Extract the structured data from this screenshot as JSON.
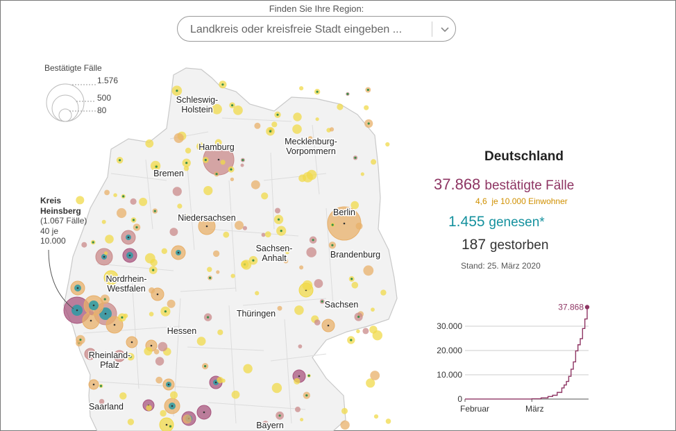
{
  "search": {
    "label": "Finden Sie Ihre Region:",
    "placeholder": "Landkreis oder kreisfreie Stadt eingeben ..."
  },
  "legend": {
    "title": "Bestätigte Fälle",
    "values": [
      "1.576",
      "500",
      "80"
    ]
  },
  "annotation": {
    "name_line1": "Kreis",
    "name_line2": "Heinsberg",
    "line3": "(1.067 Fälle)",
    "line4": "40 je",
    "line5": "10.000"
  },
  "map": {
    "states": [
      {
        "name": "Schleswig-",
        "name2": "Holstein"
      },
      {
        "name": "Hamburg"
      },
      {
        "name": "Mecklenburg-",
        "name2": "Vorpommern"
      },
      {
        "name": "Bremen"
      },
      {
        "name": "Berlin"
      },
      {
        "name": "Niedersachsen"
      },
      {
        "name": "Sachsen-",
        "name2": "Anhalt"
      },
      {
        "name": "Brandenburg"
      },
      {
        "name": "Nordrhein-",
        "name2": "Westfalen"
      },
      {
        "name": "Sachsen"
      },
      {
        "name": "Thüringen"
      },
      {
        "name": "Hessen"
      },
      {
        "name": "Rheinland-",
        "name2": "Pfalz"
      },
      {
        "name": "Saarland"
      },
      {
        "name": "Bayern"
      }
    ],
    "colors": {
      "low": "#f0d94a",
      "mid": "#e8b06a",
      "high": "#c98a8a",
      "veryhigh": "#a8557e",
      "recovered": "#2a9aa4"
    }
  },
  "summary": {
    "region": "Deutschland",
    "cases_value": "37.868",
    "cases_label": "bestätigte Fälle",
    "per_value": "4,6",
    "per_label": "je 10.000 Einwohner",
    "recovered_value": "1.455",
    "recovered_label": "genesen*",
    "deaths_value": "187",
    "deaths_label": "gestorben",
    "stand": "Stand: 25. März 2020"
  },
  "chart_data": {
    "type": "line",
    "title": "",
    "xlabel": "",
    "ylabel": "",
    "x_tick_labels": [
      "Februar",
      "März"
    ],
    "y_tick_labels": [
      "0",
      "10.000",
      "20.000",
      "30.000"
    ],
    "ylim": [
      0,
      40000
    ],
    "end_label": "37.868",
    "color": "#8e3563",
    "x": [
      "01.02.",
      "15.02.",
      "25.02.",
      "01.03.",
      "05.03.",
      "08.03.",
      "10.03.",
      "12.03.",
      "14.03.",
      "15.03.",
      "16.03.",
      "17.03.",
      "18.03.",
      "19.03.",
      "20.03.",
      "21.03.",
      "22.03.",
      "23.03.",
      "24.03.",
      "25.03."
    ],
    "values": [
      8,
      16,
      20,
      130,
      480,
      1040,
      1570,
      2750,
      4600,
      5800,
      7270,
      9370,
      12300,
      15300,
      19850,
      22360,
      24870,
      29060,
      32990,
      37868
    ]
  }
}
